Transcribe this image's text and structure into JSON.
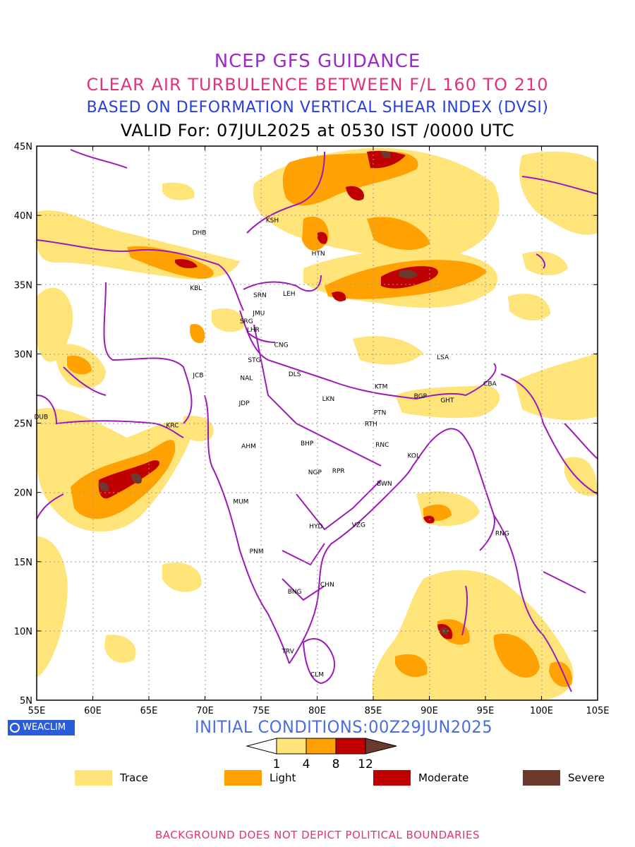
{
  "titles": {
    "line1": "NCEP GFS GUIDANCE",
    "line2": "CLEAR AIR TURBULENCE BETWEEN F/L 160 TO 210",
    "line3": "BASED ON DEFORMATION VERTICAL SHEAR INDEX (DVSI)",
    "line4": "VALID For: 07JUL2025 at 0530 IST /0000 UTC"
  },
  "axes": {
    "lon_labels": [
      "55E",
      "60E",
      "65E",
      "70E",
      "75E",
      "80E",
      "85E",
      "90E",
      "95E",
      "100E",
      "105E"
    ],
    "lat_labels": [
      "45N",
      "40N",
      "35N",
      "30N",
      "25N",
      "20N",
      "15N",
      "10N",
      "5N"
    ],
    "lon_range": [
      55,
      105
    ],
    "lat_range": [
      5,
      45
    ]
  },
  "stations": [
    {
      "code": "DHB",
      "lon": 69.5,
      "lat": 38.6
    },
    {
      "code": "KSH",
      "lon": 76.0,
      "lat": 39.5
    },
    {
      "code": "HTN",
      "lon": 80.1,
      "lat": 37.1
    },
    {
      "code": "KBL",
      "lon": 69.2,
      "lat": 34.6
    },
    {
      "code": "SRN",
      "lon": 74.9,
      "lat": 34.1
    },
    {
      "code": "LEH",
      "lon": 77.5,
      "lat": 34.2
    },
    {
      "code": "JMU",
      "lon": 74.8,
      "lat": 32.8
    },
    {
      "code": "SRG",
      "lon": 73.7,
      "lat": 32.2
    },
    {
      "code": "LHR",
      "lon": 74.3,
      "lat": 31.6
    },
    {
      "code": "CNG",
      "lon": 76.8,
      "lat": 30.5
    },
    {
      "code": "STG",
      "lon": 74.4,
      "lat": 29.4
    },
    {
      "code": "NAL",
      "lon": 73.7,
      "lat": 28.1
    },
    {
      "code": "DLS",
      "lon": 78.0,
      "lat": 28.4
    },
    {
      "code": "JCB",
      "lon": 69.4,
      "lat": 28.3
    },
    {
      "code": "LSA",
      "lon": 91.2,
      "lat": 29.6
    },
    {
      "code": "KTM",
      "lon": 85.7,
      "lat": 27.5
    },
    {
      "code": "CBA",
      "lon": 95.4,
      "lat": 27.7
    },
    {
      "code": "BGP",
      "lon": 89.2,
      "lat": 26.8
    },
    {
      "code": "GHT",
      "lon": 91.6,
      "lat": 26.5
    },
    {
      "code": "LKN",
      "lon": 81.0,
      "lat": 26.6
    },
    {
      "code": "JDP",
      "lon": 73.5,
      "lat": 26.3
    },
    {
      "code": "PTN",
      "lon": 85.6,
      "lat": 25.6
    },
    {
      "code": "DUB",
      "lon": 55.4,
      "lat": 25.3
    },
    {
      "code": "KRC",
      "lon": 67.1,
      "lat": 24.7
    },
    {
      "code": "RTH",
      "lon": 84.8,
      "lat": 24.8
    },
    {
      "code": "BHP",
      "lon": 79.1,
      "lat": 23.4
    },
    {
      "code": "AHM",
      "lon": 73.9,
      "lat": 23.2
    },
    {
      "code": "RNC",
      "lon": 85.8,
      "lat": 23.3
    },
    {
      "code": "KOL",
      "lon": 88.6,
      "lat": 22.5
    },
    {
      "code": "NGP",
      "lon": 79.8,
      "lat": 21.3
    },
    {
      "code": "RPR",
      "lon": 81.9,
      "lat": 21.4
    },
    {
      "code": "BWN",
      "lon": 86.0,
      "lat": 20.5
    },
    {
      "code": "MUM",
      "lon": 73.2,
      "lat": 19.2
    },
    {
      "code": "HYD",
      "lon": 79.9,
      "lat": 17.4
    },
    {
      "code": "VZG",
      "lon": 83.7,
      "lat": 17.5
    },
    {
      "code": "RNG",
      "lon": 96.5,
      "lat": 16.9
    },
    {
      "code": "PNM",
      "lon": 74.6,
      "lat": 15.6
    },
    {
      "code": "CHN",
      "lon": 80.9,
      "lat": 13.2
    },
    {
      "code": "BNG",
      "lon": 78.0,
      "lat": 12.7
    },
    {
      "code": "TRV",
      "lon": 77.4,
      "lat": 8.4
    },
    {
      "code": "CLM",
      "lon": 80.0,
      "lat": 6.7
    }
  ],
  "badge": "WEACLIM",
  "initial_conditions": "INITIAL CONDITIONS:00Z29JUN2025",
  "colorbar": {
    "ticks": [
      "1",
      "4",
      "8",
      "12"
    ],
    "colors": [
      "#ffffff",
      "#ffe47a",
      "#ffa100",
      "#c00000",
      "#6b3a2c"
    ]
  },
  "legend": [
    {
      "label": "Trace",
      "color": "#ffe47a"
    },
    {
      "label": "Light",
      "color": "#ffa100"
    },
    {
      "label": "Moderate",
      "color": "#c00000"
    },
    {
      "label": "Severe",
      "color": "#6b3a2c"
    }
  ],
  "footer": "BACKGROUND DOES NOT DEPICT POLITICAL BOUNDARIES"
}
